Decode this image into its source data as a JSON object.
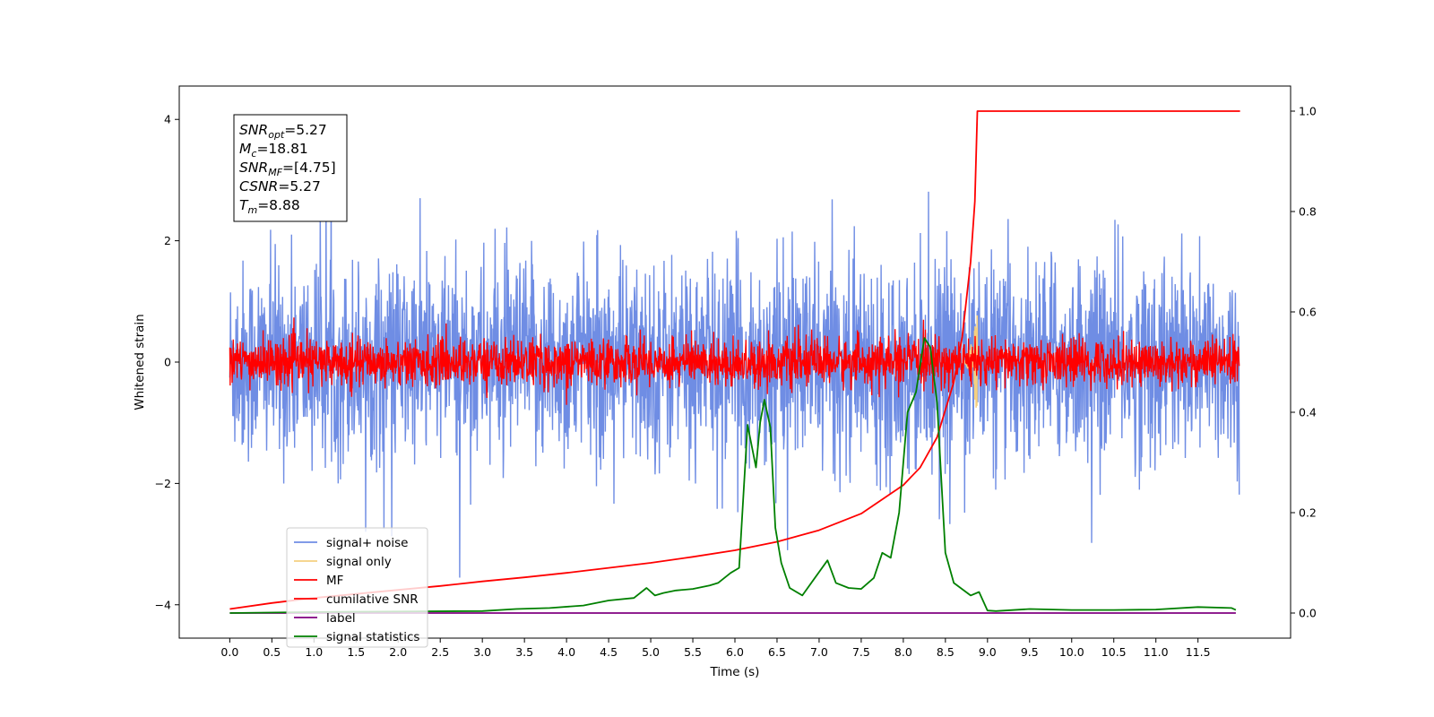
{
  "chart_data": {
    "type": "line",
    "xlabel": "Time (s)",
    "ylabel": "Whitened strain",
    "xlim": [
      -0.6,
      12.6
    ],
    "ylim": [
      -4.55,
      4.55
    ],
    "y2lim": [
      -0.05,
      1.05
    ],
    "x_ticks": [
      0.0,
      0.5,
      1.0,
      1.5,
      2.0,
      2.5,
      3.0,
      3.5,
      4.0,
      4.5,
      5.0,
      5.5,
      6.0,
      6.5,
      7.0,
      7.5,
      8.0,
      8.5,
      9.0,
      9.5,
      10.0,
      10.5,
      11.0,
      11.5
    ],
    "x_tick_labels": [
      "0.0",
      "0.5",
      "1.0",
      "1.5",
      "2.0",
      "2.5",
      "3.0",
      "3.5",
      "4.0",
      "4.5",
      "5.0",
      "5.5",
      "6.0",
      "6.5",
      "7.0",
      "7.5",
      "8.0",
      "8.5",
      "9.0",
      "9.5",
      "10.0",
      "10.5",
      "11.0",
      "11.5"
    ],
    "y_ticks": [
      -4,
      -2,
      0,
      2,
      4
    ],
    "y_tick_labels": [
      "−4",
      "−2",
      "0",
      "2",
      "4"
    ],
    "y2_ticks": [
      0.0,
      0.2,
      0.4,
      0.6,
      0.8,
      1.0
    ],
    "y2_tick_labels": [
      "0.0",
      "0.2",
      "0.4",
      "0.6",
      "0.8",
      "1.0"
    ],
    "legend_placement": "lower-left",
    "grid": false,
    "info_box": {
      "lines": [
        {
          "sym": "SNR",
          "sub": "opt",
          "val": "=5.27"
        },
        {
          "sym": "M",
          "sub": "c",
          "val": "=18.81"
        },
        {
          "sym": "SNR",
          "sub": "MF",
          "val": "=[4.75]"
        },
        {
          "sym": "CSNR",
          "sub": "",
          "val": "=5.27"
        },
        {
          "sym": "T",
          "sub": "m",
          "val": "=8.88"
        }
      ]
    },
    "series": [
      {
        "name": "signal+ noise",
        "axis": "left",
        "color": "#6f8de4",
        "kind": "noise_band",
        "x_range": [
          0.0,
          11.99
        ],
        "typical_amplitude": 1.5,
        "peak_amplitude": 4.1
      },
      {
        "name": "signal only",
        "axis": "left",
        "color": "#f5d080",
        "kind": "chirp",
        "x_range": [
          8.7,
          8.88
        ],
        "peak_amplitude": 0.9
      },
      {
        "name": "MF",
        "axis": "left",
        "color": "#ff0000",
        "kind": "noise_band",
        "x_range": [
          0.0,
          11.99
        ],
        "typical_amplitude": 0.35,
        "peak_amplitude": 1.0
      },
      {
        "name": "cumilative SNR",
        "axis": "right",
        "color": "#ff0000",
        "x": [
          0.0,
          0.5,
          1.0,
          1.5,
          2.0,
          2.5,
          3.0,
          3.5,
          4.0,
          4.5,
          5.0,
          5.5,
          6.0,
          6.5,
          7.0,
          7.5,
          8.0,
          8.2,
          8.4,
          8.6,
          8.7,
          8.8,
          8.85,
          8.88,
          9.0,
          10.0,
          11.0,
          12.0
        ],
        "values": [
          0.008,
          0.02,
          0.03,
          0.038,
          0.046,
          0.054,
          0.063,
          0.071,
          0.08,
          0.09,
          0.1,
          0.112,
          0.125,
          0.142,
          0.165,
          0.198,
          0.255,
          0.29,
          0.35,
          0.46,
          0.55,
          0.7,
          0.82,
          1.0,
          1.0,
          1.0,
          1.0,
          1.0
        ]
      },
      {
        "name": "label",
        "axis": "right",
        "color": "#800080",
        "x": [
          0.0,
          11.95
        ],
        "values": [
          0.0,
          0.0
        ]
      },
      {
        "name": "signal statistics",
        "axis": "right",
        "color": "#008000",
        "x": [
          0.0,
          1.0,
          2.0,
          3.0,
          3.4,
          3.8,
          4.2,
          4.5,
          4.8,
          4.95,
          5.05,
          5.15,
          5.3,
          5.5,
          5.7,
          5.8,
          5.95,
          6.05,
          6.15,
          6.25,
          6.3,
          6.35,
          6.42,
          6.48,
          6.55,
          6.65,
          6.8,
          6.95,
          7.1,
          7.2,
          7.35,
          7.5,
          7.65,
          7.75,
          7.85,
          7.95,
          8.05,
          8.15,
          8.25,
          8.32,
          8.4,
          8.5,
          8.6,
          8.8,
          8.9,
          9.0,
          9.1,
          9.5,
          10.0,
          10.5,
          11.0,
          11.5,
          11.9,
          11.95
        ],
        "values": [
          0.0,
          0.002,
          0.003,
          0.004,
          0.008,
          0.01,
          0.015,
          0.025,
          0.03,
          0.05,
          0.035,
          0.04,
          0.045,
          0.048,
          0.055,
          0.06,
          0.08,
          0.09,
          0.375,
          0.29,
          0.38,
          0.425,
          0.37,
          0.17,
          0.1,
          0.05,
          0.035,
          0.07,
          0.105,
          0.06,
          0.05,
          0.048,
          0.07,
          0.12,
          0.11,
          0.2,
          0.4,
          0.44,
          0.548,
          0.53,
          0.42,
          0.12,
          0.06,
          0.035,
          0.042,
          0.005,
          0.004,
          0.008,
          0.006,
          0.006,
          0.007,
          0.012,
          0.01,
          0.006
        ]
      }
    ]
  }
}
